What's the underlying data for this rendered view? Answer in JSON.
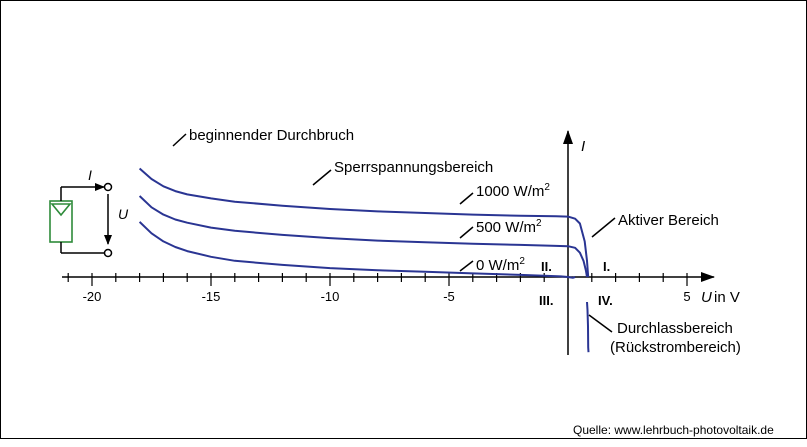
{
  "chart_data": {
    "type": "line",
    "xlabel_symbol": "U",
    "xlabel_unit": "in V",
    "ylabel": "I",
    "xlim": [
      -22,
      6
    ],
    "xticks": [
      -20,
      -15,
      -10,
      -5,
      5
    ],
    "series": [
      {
        "name": "1000 W/m²",
        "name_base": "1000 W/m",
        "name_sup": "2",
        "x": [
          -18,
          -17.5,
          -17,
          -16.5,
          -16,
          -15,
          -14,
          -12,
          -10,
          -8,
          -6,
          -4,
          -2,
          -0.5,
          0,
          0.3,
          0.5,
          0.7,
          0.8,
          0.85
        ],
        "y": [
          6.7,
          6.05,
          5.6,
          5.3,
          5.1,
          4.85,
          4.65,
          4.4,
          4.2,
          4.05,
          3.95,
          3.85,
          3.78,
          3.75,
          3.73,
          3.6,
          3.3,
          2.2,
          1.0,
          0
        ]
      },
      {
        "name": "500 W/m²",
        "name_base": "500 W/m",
        "name_sup": "2",
        "x": [
          -18,
          -17.5,
          -17,
          -16.5,
          -16,
          -15,
          -14,
          -12,
          -10,
          -8,
          -6,
          -4,
          -2,
          -0.5,
          0,
          0.3,
          0.5,
          0.65,
          0.75,
          0.8
        ],
        "y": [
          5.0,
          4.3,
          3.85,
          3.55,
          3.35,
          3.05,
          2.85,
          2.6,
          2.4,
          2.25,
          2.15,
          2.05,
          1.98,
          1.92,
          1.9,
          1.8,
          1.5,
          1.0,
          0.4,
          0
        ]
      },
      {
        "name": "0 W/m²",
        "name_base": "0 W/m",
        "name_sup": "2",
        "x": [
          -18,
          -17.5,
          -17,
          -16.5,
          -16,
          -15,
          -14,
          -12,
          -10,
          -8,
          -6,
          -4,
          -2,
          -1,
          -0.3,
          0,
          0.2,
          0.3
        ],
        "y": [
          3.4,
          2.7,
          2.2,
          1.85,
          1.6,
          1.25,
          1.0,
          0.75,
          0.55,
          0.42,
          0.32,
          0.22,
          0.13,
          0.08,
          0.04,
          0,
          -0.05,
          0
        ]
      }
    ],
    "forward_branch": {
      "x": [
        0.8,
        0.82,
        0.84,
        0.85,
        0.86
      ],
      "y": [
        0,
        -0.5,
        -1.5,
        -2.8,
        -3.1
      ]
    }
  },
  "annotations": {
    "breakdown": "beginnender Durchbruch",
    "reverse_region": "Sperrspannungsbereich",
    "active_region": "Aktiver Bereich",
    "forward_region_1": "Durchlassbereich",
    "forward_region_2": "(Rückstrombereich)"
  },
  "quadrants": {
    "q1": "I.",
    "q2": "II.",
    "q3": "III.",
    "q4": "IV."
  },
  "circuit": {
    "current_label": "I",
    "voltage_label": "U"
  },
  "source": "Quelle: www.lehrbuch-photovoltaik.de",
  "colors": {
    "curve": "#2a3593",
    "cell": "#2e8b3a",
    "axis": "#000000"
  }
}
